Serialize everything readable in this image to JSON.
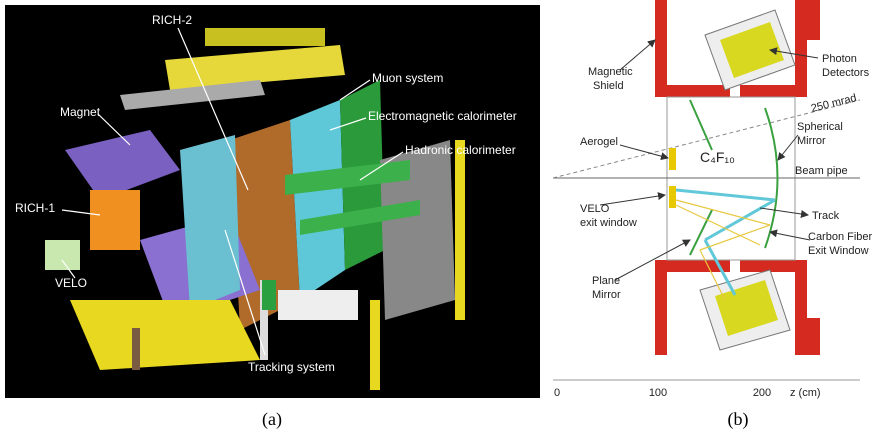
{
  "panel_a": {
    "labels": {
      "rich2": "RICH-2",
      "muon": "Muon system",
      "ecal": "Electromagnetic calorimeter",
      "hcal": "Hadronic calorimeter",
      "magnet": "Magnet",
      "rich1": "RICH-1",
      "velo": "VELO",
      "tracking": "Tracking system"
    },
    "caption": "(a)"
  },
  "panel_b": {
    "magnetic_shield": [
      "Magnetic",
      "Shield"
    ],
    "photon_detectors": [
      "Photon",
      "Detectors"
    ],
    "angle": "250 mrad",
    "aerogel": "Aerogel",
    "spherical_mirror": [
      "Spherical",
      "Mirror"
    ],
    "gas": "C₄F₁₀",
    "beam_pipe": "Beam pipe",
    "velo_window": [
      "VELO",
      "exit window"
    ],
    "track": "Track",
    "exit_window": [
      "Carbon Fiber",
      "Exit Window"
    ],
    "plane_mirror": [
      "Plane",
      "Mirror"
    ],
    "axis_ticks": [
      "0",
      "100",
      "200"
    ],
    "axis_label": "z (cm)",
    "caption": "(b)"
  }
}
